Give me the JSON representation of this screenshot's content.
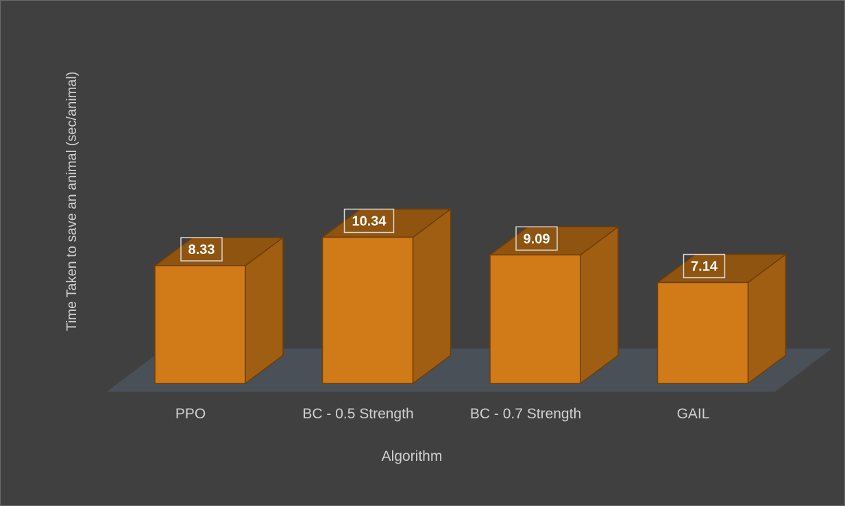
{
  "chart_data": {
    "type": "bar",
    "style": "3d-column",
    "categories": [
      "PPO",
      "BC - 0.5 Strength",
      "BC - 0.7 Strength",
      "GAIL"
    ],
    "values": [
      8.33,
      10.34,
      9.09,
      7.14
    ],
    "value_labels": [
      "8.33",
      "10.34",
      "9.09",
      "7.14"
    ],
    "title": "",
    "xlabel": "Algorithm",
    "ylabel": "Time Taken to save an animal (sec/animal)",
    "ylim": [
      0,
      12
    ],
    "grid": false,
    "legend": "none"
  },
  "colors": {
    "background": "#404040",
    "bar_front": "#D07A18",
    "bar_side": "#A05E12",
    "bar_top": "#8E5410",
    "bar_edge": "#6E3E06",
    "floor": "#4A5058",
    "text": "#D0D0D0",
    "label_text": "#FFFFFF"
  }
}
